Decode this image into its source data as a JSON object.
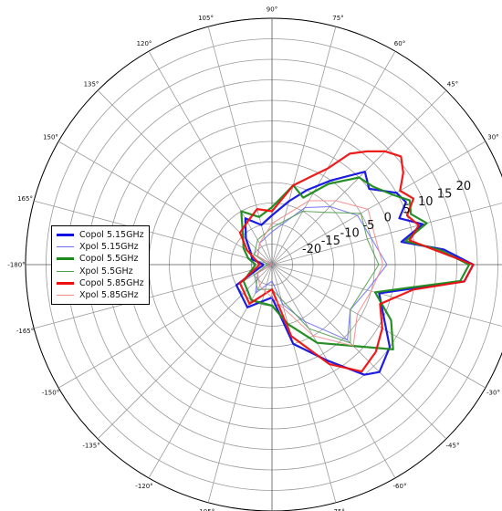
{
  "chart_data": {
    "type": "polar",
    "angular_unit": "degrees",
    "angle_ticks": [
      {
        "angle": 90,
        "label": "90°"
      },
      {
        "angle": 75,
        "label": "75°"
      },
      {
        "angle": 60,
        "label": "60°"
      },
      {
        "angle": 45,
        "label": "45°"
      },
      {
        "angle": 30,
        "label": "30°"
      },
      {
        "angle": 0,
        "label": ""
      },
      {
        "angle": -30,
        "label": "-30°"
      },
      {
        "angle": -45,
        "label": "-45°"
      },
      {
        "angle": -60,
        "label": "-60°"
      },
      {
        "angle": -75,
        "label": "-75°"
      },
      {
        "angle": -90,
        "label": "-90°"
      },
      {
        "angle": -105,
        "label": "-105°"
      },
      {
        "angle": -120,
        "label": "-120°"
      },
      {
        "angle": -135,
        "label": "-135°"
      },
      {
        "angle": -150,
        "label": "-150°"
      },
      {
        "angle": -165,
        "label": "-165°"
      },
      {
        "angle": 180,
        "label": "-180°"
      },
      {
        "angle": 165,
        "label": "165°"
      },
      {
        "angle": 150,
        "label": "150°"
      },
      {
        "angle": 135,
        "label": "135°"
      },
      {
        "angle": 120,
        "label": "120°"
      },
      {
        "angle": 105,
        "label": "105°"
      }
    ],
    "radial_range": [
      -30,
      30
    ],
    "radial_ticks": [
      -25,
      -20,
      -15,
      -10,
      -5,
      0,
      5,
      10,
      15,
      20,
      25,
      30
    ],
    "radial_tick_labels": [
      "-20",
      "-15",
      "-10",
      "-5",
      "0",
      "5",
      "10",
      "15",
      "20"
    ],
    "grid": true,
    "legend_position": "left",
    "series": [
      {
        "name": "Copol 5.15GHz",
        "color": "#1010e0",
        "line": "thick",
        "points": [
          [
            -180,
            -28
          ],
          [
            -150,
            -20
          ],
          [
            -120,
            -18
          ],
          [
            -90,
            -22
          ],
          [
            -75,
            -10
          ],
          [
            -60,
            -3
          ],
          [
            -50,
            5
          ],
          [
            -45,
            7
          ],
          [
            -35,
            5
          ],
          [
            -25,
            0
          ],
          [
            -15,
            -3
          ],
          [
            -10,
            4
          ],
          [
            -5,
            17
          ],
          [
            0,
            19
          ],
          [
            5,
            12
          ],
          [
            10,
            2
          ],
          [
            15,
            8
          ],
          [
            20,
            3
          ],
          [
            25,
            6
          ],
          [
            30,
            5
          ],
          [
            38,
            0
          ],
          [
            45,
            2
          ],
          [
            55,
            -5
          ],
          [
            65,
            -10
          ],
          [
            75,
            -14
          ],
          [
            90,
            -18
          ],
          [
            105,
            -20
          ],
          [
            120,
            -17
          ],
          [
            135,
            -21
          ],
          [
            150,
            -24
          ],
          [
            165,
            -25
          ],
          [
            180,
            -28
          ]
        ]
      },
      {
        "name": "Xpol 5.15GHz",
        "color": "#6e6ef0",
        "line": "thin",
        "points": [
          [
            -180,
            -30
          ],
          [
            -150,
            -26
          ],
          [
            -120,
            -22
          ],
          [
            -90,
            -26
          ],
          [
            -75,
            -20
          ],
          [
            -60,
            -14
          ],
          [
            -45,
            -4
          ],
          [
            -30,
            -8
          ],
          [
            -15,
            -6
          ],
          [
            0,
            -2
          ],
          [
            15,
            -5
          ],
          [
            30,
            -6
          ],
          [
            45,
            -10
          ],
          [
            60,
            -14
          ],
          [
            90,
            -22
          ],
          [
            120,
            -24
          ],
          [
            150,
            -26
          ],
          [
            180,
            -30
          ]
        ]
      },
      {
        "name": "Copol 5.5GHz",
        "color": "#1a8a1a",
        "line": "thick",
        "points": [
          [
            -180,
            -26
          ],
          [
            -150,
            -22
          ],
          [
            -120,
            -20
          ],
          [
            -90,
            -20
          ],
          [
            -75,
            -15
          ],
          [
            -60,
            -8
          ],
          [
            -45,
            -2
          ],
          [
            -35,
            6
          ],
          [
            -25,
            2
          ],
          [
            -15,
            -4
          ],
          [
            -10,
            3
          ],
          [
            -5,
            16
          ],
          [
            0,
            18
          ],
          [
            5,
            11
          ],
          [
            10,
            3
          ],
          [
            15,
            9
          ],
          [
            20,
            6
          ],
          [
            25,
            7
          ],
          [
            30,
            4
          ],
          [
            38,
            1
          ],
          [
            45,
            0
          ],
          [
            55,
            -6
          ],
          [
            65,
            -12
          ],
          [
            75,
            -10
          ],
          [
            90,
            -16
          ],
          [
            105,
            -18
          ],
          [
            120,
            -15
          ],
          [
            135,
            -20
          ],
          [
            150,
            -22
          ],
          [
            165,
            -24
          ],
          [
            180,
            -26
          ]
        ]
      },
      {
        "name": "Xpol 5.5GHz",
        "color": "#4f9e4f",
        "line": "thin",
        "points": [
          [
            -180,
            -29
          ],
          [
            -150,
            -25
          ],
          [
            -120,
            -23
          ],
          [
            -90,
            -24
          ],
          [
            -60,
            -12
          ],
          [
            -45,
            -3
          ],
          [
            -30,
            -8
          ],
          [
            -15,
            -7
          ],
          [
            0,
            -4
          ],
          [
            15,
            -6
          ],
          [
            30,
            -5
          ],
          [
            45,
            -12
          ],
          [
            60,
            -15
          ],
          [
            90,
            -21
          ],
          [
            120,
            -23
          ],
          [
            150,
            -25
          ],
          [
            180,
            -29
          ]
        ]
      },
      {
        "name": "Copol 5.85GHz",
        "color": "#ee1010",
        "line": "thick",
        "points": [
          [
            -180,
            -27
          ],
          [
            -150,
            -21
          ],
          [
            -120,
            -19
          ],
          [
            -90,
            -24
          ],
          [
            -75,
            -12
          ],
          [
            -60,
            -2
          ],
          [
            -50,
            4
          ],
          [
            -40,
            3
          ],
          [
            -30,
            1
          ],
          [
            -20,
            -2
          ],
          [
            -10,
            5
          ],
          [
            -5,
            17
          ],
          [
            0,
            19
          ],
          [
            5,
            10
          ],
          [
            10,
            4
          ],
          [
            15,
            7
          ],
          [
            20,
            5
          ],
          [
            25,
            8
          ],
          [
            30,
            6
          ],
          [
            35,
            9
          ],
          [
            40,
            11
          ],
          [
            45,
            9
          ],
          [
            50,
            6
          ],
          [
            55,
            3
          ],
          [
            60,
            -3
          ],
          [
            65,
            -6
          ],
          [
            75,
            -10
          ],
          [
            90,
            -17
          ],
          [
            105,
            -16
          ],
          [
            120,
            -18
          ],
          [
            135,
            -19
          ],
          [
            150,
            -23
          ],
          [
            165,
            -26
          ],
          [
            180,
            -27
          ]
        ]
      },
      {
        "name": "Xpol 5.85GHz",
        "color": "#f08a8a",
        "line": "thin",
        "points": [
          [
            -180,
            -30
          ],
          [
            -150,
            -26
          ],
          [
            -120,
            -24
          ],
          [
            -90,
            -22
          ],
          [
            -60,
            -10
          ],
          [
            -45,
            -2
          ],
          [
            -30,
            -6
          ],
          [
            -15,
            -5
          ],
          [
            0,
            -3
          ],
          [
            15,
            -4
          ],
          [
            30,
            -3
          ],
          [
            45,
            -8
          ],
          [
            60,
            -12
          ],
          [
            90,
            -20
          ],
          [
            120,
            -24
          ],
          [
            150,
            -26
          ],
          [
            180,
            -30
          ]
        ]
      }
    ]
  }
}
